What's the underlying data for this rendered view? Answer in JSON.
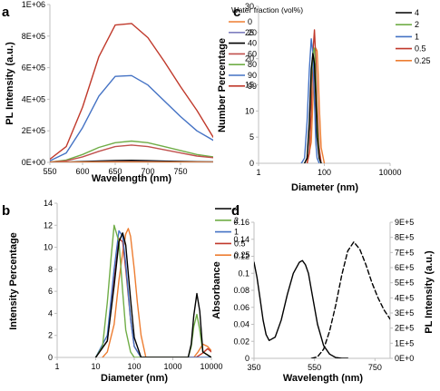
{
  "chart_data": [
    {
      "panel": "a",
      "type": "line",
      "xlabel": "Wavelength (nm)",
      "ylabel": "PL Intensity (a.u.)",
      "xlim": [
        550,
        800
      ],
      "ylim": [
        0,
        1000000
      ],
      "x_scale": "linear",
      "y_scale": "linear",
      "xticks": [
        550,
        600,
        650,
        700,
        750
      ],
      "xtick_labels": [
        "550",
        "600",
        "650",
        "700",
        "750"
      ],
      "yticks": [
        0,
        200000,
        400000,
        600000,
        800000,
        1000000
      ],
      "ytick_labels": [
        "0E+00",
        "2E+05",
        "4E+05",
        "6E+05",
        "8E+05",
        "1E+06"
      ],
      "legend_title": "Water fraction (vol%)",
      "legend_position": "right",
      "grid": false,
      "series": [
        {
          "name": "0",
          "color": "#ed7d31",
          "style": "solid",
          "x": [
            550,
            575,
            600,
            625,
            650,
            675,
            700,
            725,
            750,
            775,
            800
          ],
          "values": [
            200,
            500,
            1500,
            2500,
            3000,
            3000,
            2500,
            2000,
            1500,
            1000,
            500
          ]
        },
        {
          "name": "20",
          "color": "#7f7fbf",
          "style": "solid",
          "x": [
            550,
            575,
            600,
            625,
            650,
            675,
            700,
            725,
            750,
            775,
            800
          ],
          "values": [
            300,
            1000,
            2500,
            4000,
            5000,
            5000,
            4500,
            3500,
            2500,
            1500,
            1000
          ]
        },
        {
          "name": "40",
          "color": "#000000",
          "style": "solid",
          "x": [
            550,
            575,
            600,
            625,
            650,
            675,
            700,
            725,
            750,
            775,
            800
          ],
          "values": [
            300,
            2000,
            5000,
            9000,
            12000,
            13000,
            11000,
            8000,
            6000,
            4000,
            3000
          ]
        },
        {
          "name": "60",
          "color": "#c0504d",
          "style": "solid",
          "x": [
            550,
            575,
            600,
            625,
            650,
            675,
            700,
            725,
            750,
            775,
            800
          ],
          "values": [
            2000,
            10000,
            35000,
            70000,
            100000,
            110000,
            100000,
            80000,
            60000,
            40000,
            30000
          ]
        },
        {
          "name": "80",
          "color": "#70ad47",
          "style": "solid",
          "x": [
            550,
            575,
            600,
            625,
            650,
            675,
            700,
            725,
            750,
            775,
            800
          ],
          "values": [
            2000,
            15000,
            50000,
            95000,
            125000,
            135000,
            125000,
            100000,
            75000,
            50000,
            35000
          ]
        },
        {
          "name": "90",
          "color": "#4472c4",
          "style": "solid",
          "x": [
            550,
            575,
            600,
            625,
            650,
            675,
            700,
            725,
            750,
            775,
            800
          ],
          "values": [
            10000,
            60000,
            220000,
            420000,
            545000,
            550000,
            490000,
            390000,
            290000,
            200000,
            140000
          ]
        },
        {
          "name": "99",
          "color": "#c0392b",
          "style": "solid",
          "x": [
            550,
            575,
            600,
            625,
            650,
            675,
            700,
            725,
            750,
            775,
            800
          ],
          "values": [
            20000,
            100000,
            350000,
            670000,
            870000,
            880000,
            790000,
            640000,
            480000,
            330000,
            160000
          ]
        }
      ]
    },
    {
      "panel": "b",
      "type": "line",
      "xlabel": "Diameter (nm)",
      "ylabel": "Intensity Percentage",
      "xlim": [
        1,
        10000
      ],
      "ylim": [
        0,
        14
      ],
      "x_scale": "log",
      "y_scale": "linear",
      "xticks": [
        1,
        10,
        100,
        1000,
        10000
      ],
      "xtick_labels": [
        "1",
        "10",
        "100",
        "1000",
        "10000"
      ],
      "yticks": [
        0,
        2,
        4,
        6,
        8,
        10,
        12,
        14
      ],
      "ytick_labels": [
        "0",
        "2",
        "4",
        "6",
        "8",
        "10",
        "12",
        "14"
      ],
      "legend_position": "right",
      "grid": false,
      "series": [
        {
          "name": "4",
          "color": "#000000",
          "style": "solid",
          "x": [
            10,
            20,
            30,
            40,
            50,
            60,
            80,
            100,
            150,
            2500,
            3000,
            3500,
            4200,
            5000,
            6000,
            10000
          ],
          "values": [
            0,
            1.5,
            6.5,
            10.5,
            11.3,
            10.2,
            5.3,
            1.8,
            0,
            0,
            1.2,
            3.8,
            5.8,
            4.2,
            0.5,
            0
          ]
        },
        {
          "name": "2",
          "color": "#70ad47",
          "style": "solid",
          "x": [
            10,
            15,
            20,
            25,
            30,
            40,
            50,
            60,
            80,
            100,
            2500,
            3000,
            3500,
            4200,
            5000,
            6000,
            10000
          ],
          "values": [
            0,
            1,
            5,
            9,
            12,
            10.5,
            6,
            2.5,
            0.5,
            0,
            0,
            1,
            2.8,
            3.9,
            2.5,
            0.5,
            0
          ]
        },
        {
          "name": "1",
          "color": "#4472c4",
          "style": "solid",
          "x": [
            10,
            20,
            30,
            40,
            50,
            60,
            80,
            100,
            150,
            10000
          ],
          "values": [
            0,
            2,
            8,
            11.5,
            11,
            8.5,
            3.5,
            1,
            0,
            0
          ]
        },
        {
          "name": "0.5",
          "color": "#c0392b",
          "style": "solid",
          "x": [
            10,
            20,
            30,
            40,
            50,
            60,
            80,
            100,
            150,
            4000,
            6000,
            8000,
            10000
          ],
          "values": [
            0,
            1.5,
            7,
            10.8,
            10.5,
            8,
            3.5,
            1,
            0,
            0,
            0.4,
            0.8,
            0.5
          ]
        },
        {
          "name": "0.25",
          "color": "#ed7d31",
          "style": "solid",
          "x": [
            15,
            20,
            30,
            40,
            50,
            60,
            70,
            80,
            100,
            120,
            150,
            200,
            3500,
            4500,
            6000,
            8000,
            10000
          ],
          "values": [
            0,
            0.5,
            3,
            7,
            9.5,
            11.2,
            11.7,
            11,
            8,
            5,
            2,
            0,
            0,
            0.5,
            1.2,
            1,
            0.6
          ]
        }
      ]
    },
    {
      "panel": "c",
      "type": "line",
      "xlabel": "Diameter (nm)",
      "ylabel": "Number Percentage",
      "xlim": [
        1,
        10000
      ],
      "ylim": [
        0,
        30
      ],
      "x_scale": "log",
      "y_scale": "linear",
      "xticks": [
        1,
        100,
        10000
      ],
      "xtick_labels": [
        "1",
        "100",
        "10000"
      ],
      "yticks": [
        0,
        5,
        10,
        15,
        20,
        25,
        30
      ],
      "ytick_labels": [
        "0",
        "5",
        "10",
        "15",
        "20",
        "25",
        "30"
      ],
      "legend_position": "right",
      "grid": false,
      "series": [
        {
          "name": "4",
          "color": "#000000",
          "style": "solid",
          "x": [
            25,
            30,
            35,
            40,
            45,
            50,
            55,
            60,
            70,
            80
          ],
          "values": [
            0,
            1,
            8,
            18,
            21,
            19,
            12,
            5,
            1,
            0
          ]
        },
        {
          "name": "2",
          "color": "#70ad47",
          "style": "solid",
          "x": [
            25,
            30,
            35,
            40,
            45,
            50,
            55,
            60,
            70,
            80
          ],
          "values": [
            0,
            1,
            7,
            16,
            21,
            22,
            16,
            8,
            1,
            0
          ]
        },
        {
          "name": "1",
          "color": "#4472c4",
          "style": "solid",
          "x": [
            20,
            25,
            30,
            35,
            40,
            45,
            50,
            55,
            60,
            70
          ],
          "values": [
            0,
            1,
            8,
            18,
            23.8,
            21,
            12,
            4,
            1,
            0
          ]
        },
        {
          "name": "0.5",
          "color": "#c0392b",
          "style": "solid",
          "x": [
            30,
            35,
            40,
            45,
            50,
            55,
            60,
            70,
            80
          ],
          "values": [
            0,
            2,
            10,
            21,
            25.5,
            20,
            12,
            3,
            0
          ]
        },
        {
          "name": "0.25",
          "color": "#ed7d31",
          "style": "solid",
          "x": [
            30,
            40,
            45,
            50,
            55,
            60,
            65,
            70,
            80,
            100
          ],
          "values": [
            0,
            4,
            12,
            19,
            22,
            21.5,
            17,
            11,
            3,
            0
          ]
        }
      ]
    },
    {
      "panel": "d",
      "type": "line",
      "xlabel": "Wavelength (nm)",
      "ylabel": "Absorbance",
      "y2label": "PL Intensity (a.u.)",
      "xlim": [
        350,
        800
      ],
      "ylim": [
        0,
        0.16
      ],
      "y2lim": [
        0,
        900000
      ],
      "x_scale": "linear",
      "y_scale": "linear",
      "xticks": [
        350,
        550,
        750
      ],
      "xtick_labels": [
        "350",
        "550",
        "750"
      ],
      "yticks": [
        0,
        0.02,
        0.04,
        0.06,
        0.08,
        0.1,
        0.12,
        0.14,
        0.16
      ],
      "ytick_labels": [
        "0",
        "0.02",
        "0.04",
        "0.06",
        "0.08",
        "0.1",
        "0.12",
        "0.14",
        "0.16"
      ],
      "y2ticks": [
        0,
        100000,
        200000,
        300000,
        400000,
        500000,
        600000,
        700000,
        800000,
        900000
      ],
      "y2tick_labels": [
        "0E+0",
        "1E+5",
        "2E+5",
        "3E+5",
        "4E+5",
        "5E+5",
        "6E+5",
        "7E+5",
        "8E+5",
        "9E+5"
      ],
      "grid": false,
      "series": [
        {
          "axis": "left",
          "color": "#000000",
          "style": "solid",
          "x": [
            350,
            360,
            370,
            380,
            390,
            400,
            420,
            440,
            460,
            480,
            500,
            510,
            520,
            530,
            540,
            560,
            580,
            600,
            620,
            640,
            660
          ],
          "values": [
            0.113,
            0.095,
            0.07,
            0.045,
            0.028,
            0.021,
            0.025,
            0.045,
            0.075,
            0.1,
            0.113,
            0.115,
            0.11,
            0.1,
            0.08,
            0.04,
            0.015,
            0.005,
            0.001,
            0,
            0
          ]
        },
        {
          "axis": "right",
          "color": "#000000",
          "style": "dashed",
          "x": [
            540,
            560,
            580,
            600,
            620,
            640,
            660,
            680,
            700,
            720,
            740,
            760,
            780,
            800
          ],
          "values": [
            0,
            10000,
            60000,
            180000,
            350000,
            550000,
            710000,
            770000,
            720000,
            620000,
            500000,
            400000,
            320000,
            260000
          ]
        }
      ]
    }
  ]
}
